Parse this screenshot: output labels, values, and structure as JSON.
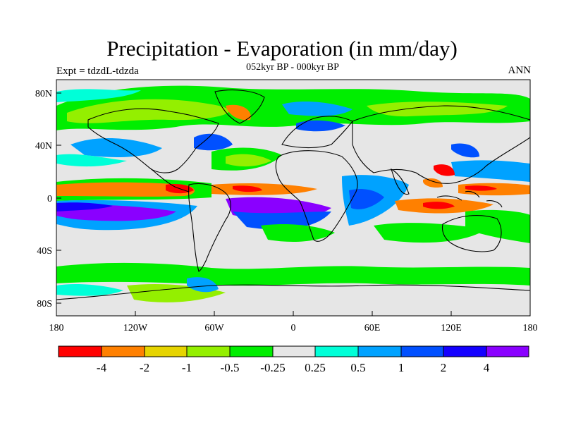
{
  "title": "Precipitation - Evaporation (in mm/day)",
  "subtitle": "052kyr BP - 000kyr BP",
  "left_label": "Expt = tdzdL-tdzda",
  "right_label": "ANN",
  "map": {
    "type": "heatmap",
    "projection": "cylindrical equidistant",
    "lon_range": [
      -180,
      180
    ],
    "lat_range": [
      -90,
      90
    ],
    "x_ticks": [
      "180",
      "120W",
      "60W",
      "0",
      "60E",
      "120E",
      "180"
    ],
    "y_ticks": [
      "80N",
      "40N",
      "0",
      "40S",
      "80S"
    ],
    "background_color": "#e6e6e6"
  },
  "colorbar": {
    "colors": [
      "#ff0000",
      "#ff8000",
      "#e6d400",
      "#94ef00",
      "#00ee00",
      "#e6e6e6",
      "#00ffd8",
      "#00a2ff",
      "#0050ff",
      "#1400ff",
      "#8a00ff"
    ],
    "labels": [
      "-4",
      "-2",
      "-1",
      "-0.5",
      "-0.25",
      "0.25",
      "0.5",
      "1",
      "2",
      "4"
    ]
  }
}
